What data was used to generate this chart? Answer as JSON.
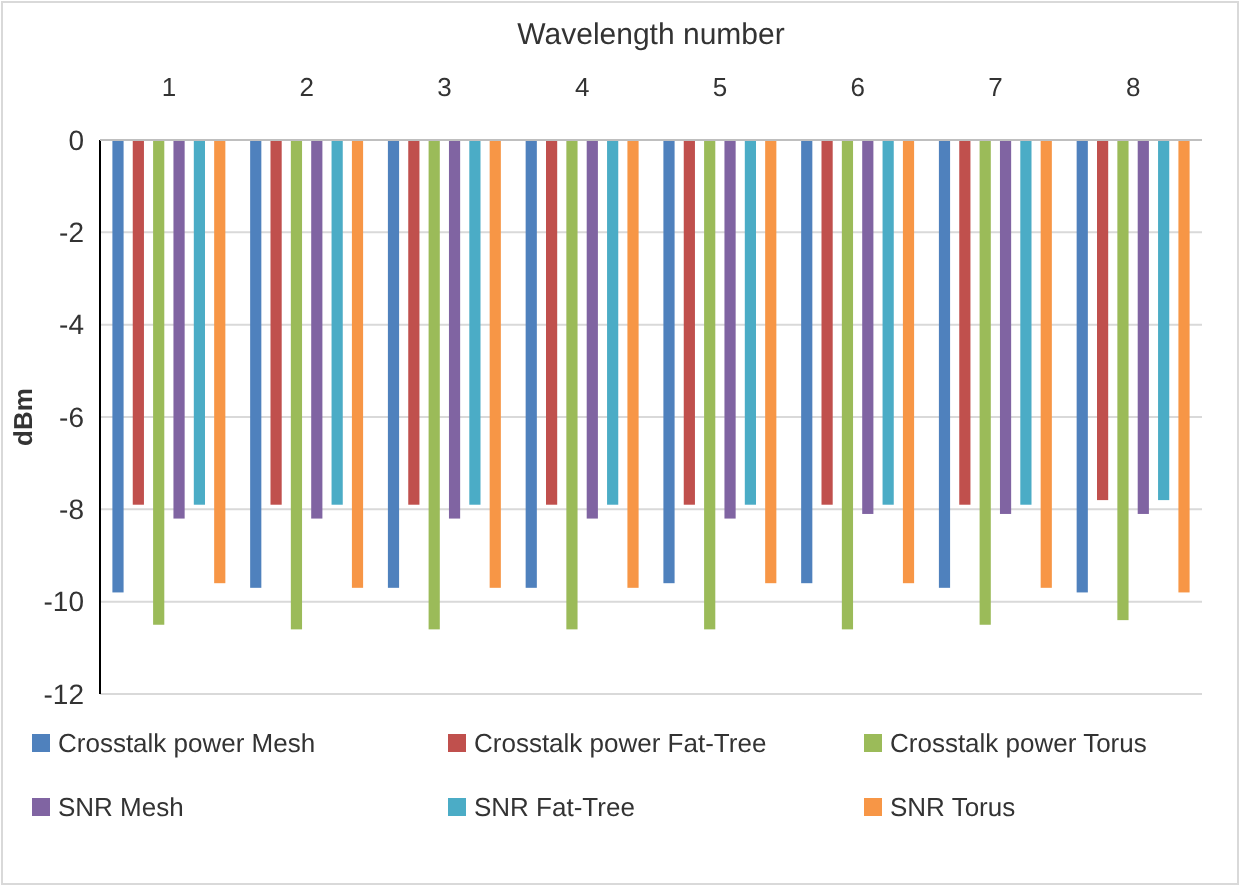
{
  "chart_data": {
    "type": "bar",
    "xlabel": "Wavelength number",
    "ylabel": "dBm",
    "categories": [
      "1",
      "2",
      "3",
      "4",
      "5",
      "6",
      "7",
      "8"
    ],
    "series": [
      {
        "name": "Crosstalk power Mesh",
        "color": "#4f81bd",
        "values": [
          -9.8,
          -9.7,
          -9.7,
          -9.7,
          -9.6,
          -9.6,
          -9.7,
          -9.8
        ]
      },
      {
        "name": "Crosstalk power Fat-Tree",
        "color": "#c0504d",
        "values": [
          -7.9,
          -7.9,
          -7.9,
          -7.9,
          -7.9,
          -7.9,
          -7.9,
          -7.8
        ]
      },
      {
        "name": "Crosstalk power Torus",
        "color": "#9bbb59",
        "values": [
          -10.5,
          -10.6,
          -10.6,
          -10.6,
          -10.6,
          -10.6,
          -10.5,
          -10.4
        ]
      },
      {
        "name": "SNR Mesh",
        "color": "#8064a2",
        "values": [
          -8.2,
          -8.2,
          -8.2,
          -8.2,
          -8.2,
          -8.1,
          -8.1,
          -8.1
        ]
      },
      {
        "name": "SNR Fat-Tree",
        "color": "#4bacc6",
        "values": [
          -7.9,
          -7.9,
          -7.9,
          -7.9,
          -7.9,
          -7.9,
          -7.9,
          -7.8
        ]
      },
      {
        "name": "SNR Torus",
        "color": "#f79646",
        "values": [
          -9.6,
          -9.7,
          -9.7,
          -9.7,
          -9.6,
          -9.6,
          -9.7,
          -9.8
        ]
      }
    ],
    "ylim": [
      -12,
      0
    ],
    "yticks": [
      0,
      -2,
      -4,
      -6,
      -8,
      -10,
      -12
    ],
    "grid": "y",
    "legend": "bottom"
  }
}
